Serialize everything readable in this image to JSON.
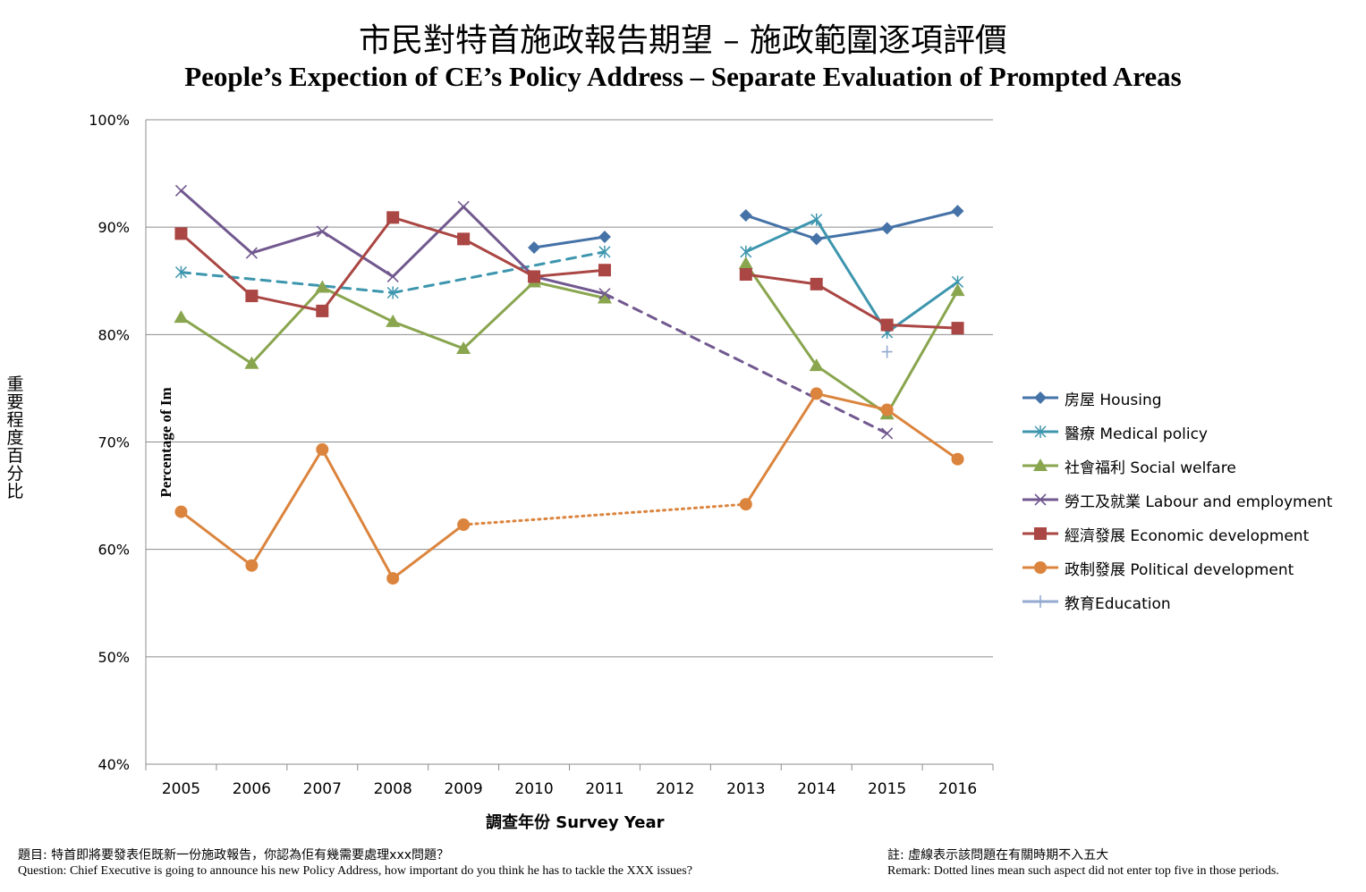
{
  "title_zh": "市民對特首施政報告期望 – 施政範圍逐項評價",
  "title_en": "People’s Expection of CE’s Policy Address – Separate Evaluation of Prompted Areas",
  "ylabel_zh": "重要程度百分比",
  "ylabel_en": "Percentage of Im",
  "xlabel": "調查年份 Survey Year",
  "footer": {
    "question_zh": "題目: 特首即將要發表佢既新一份施政報告，你認為佢有幾需要處理xxx問題？",
    "question_en": "Question: Chief Executive is going to announce his new Policy Address, how important do you think he has to tackle the XXX issues?",
    "remark_zh": "註: 虛線表示該問題在有關時期不入五大",
    "remark_en": "Remark: Dotted lines mean such aspect did not enter top five in those periods."
  },
  "chart_data": {
    "type": "line",
    "categories": [
      "2005",
      "2006",
      "2007",
      "2008",
      "2009",
      "2010",
      "2011",
      "2012",
      "2013",
      "2014",
      "2015",
      "2016"
    ],
    "ylim": [
      40,
      100
    ],
    "yticks": [
      "40%",
      "50%",
      "60%",
      "70%",
      "80%",
      "90%",
      "100%"
    ],
    "ytick_values": [
      40,
      50,
      60,
      70,
      80,
      90,
      100
    ],
    "grid": true,
    "legend_position": "right",
    "series": [
      {
        "name": "房屋 Housing",
        "color": "#4572a7",
        "marker": "diamond",
        "values": [
          null,
          null,
          null,
          null,
          null,
          88.1,
          89.1,
          null,
          91.1,
          88.9,
          89.9,
          91.5
        ],
        "dotted_segments": []
      },
      {
        "name": "醫療 Medical policy",
        "color": "#3d96ae",
        "marker": "asterisk",
        "values": [
          85.8,
          null,
          null,
          83.9,
          null,
          null,
          87.7,
          null,
          87.7,
          90.7,
          80.2,
          84.9
        ],
        "dotted_segments": [
          [
            0,
            3
          ],
          [
            3,
            6
          ]
        ]
      },
      {
        "name": "社會福利 Social welfare",
        "color": "#89a54e",
        "marker": "triangle",
        "values": [
          81.6,
          77.3,
          84.4,
          81.2,
          78.7,
          84.9,
          83.4,
          null,
          86.6,
          77.1,
          72.6,
          84.1
        ],
        "dotted_segments": []
      },
      {
        "name": "勞工及就業 Labour and employment",
        "color": "#71588f",
        "marker": "x",
        "values": [
          93.4,
          87.6,
          89.6,
          85.4,
          91.9,
          85.4,
          83.8,
          null,
          null,
          null,
          70.8,
          null
        ],
        "dotted_segments": [
          [
            6,
            10
          ]
        ]
      },
      {
        "name": "經濟發展 Economic development",
        "color": "#aa4643",
        "marker": "square",
        "values": [
          89.4,
          83.6,
          82.2,
          90.9,
          88.9,
          85.4,
          86.0,
          null,
          85.6,
          84.7,
          80.9,
          80.6
        ],
        "dotted_segments": []
      },
      {
        "name": "政制發展 Political development",
        "color": "#db843d",
        "marker": "circle",
        "values": [
          63.5,
          58.5,
          69.3,
          57.3,
          62.3,
          null,
          null,
          null,
          64.2,
          74.5,
          73.0,
          68.4
        ],
        "dotted_segments": [
          [
            4,
            8
          ]
        ]
      },
      {
        "name": "教育Education",
        "color": "#93a9cf",
        "marker": "plus",
        "values": [
          null,
          null,
          null,
          null,
          null,
          null,
          null,
          null,
          null,
          null,
          78.4,
          null
        ],
        "dotted_segments": []
      }
    ]
  }
}
